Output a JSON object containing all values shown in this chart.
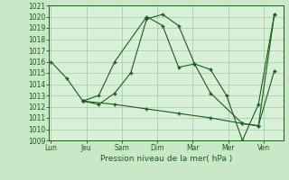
{
  "background_color": "#c8e8c8",
  "plot_bg_color": "#d8f0d8",
  "grid_color": "#a0c8a0",
  "line_color": "#1a5c1a",
  "marker_color": "#1a5c1a",
  "xlabel": "Pression niveau de la mer( hPa )",
  "ylim": [
    1009,
    1021
  ],
  "yticks": [
    1009,
    1010,
    1011,
    1012,
    1013,
    1014,
    1015,
    1016,
    1017,
    1018,
    1019,
    1020,
    1021
  ],
  "xlabels": [
    "Lun",
    "Jeu",
    "Sam",
    "Dim",
    "Mar",
    "Mer",
    "Ven"
  ],
  "xtick_positions": [
    0,
    1,
    2,
    3,
    4,
    5,
    6
  ],
  "xlim": [
    -0.05,
    6.55
  ],
  "series": [
    {
      "x": [
        0,
        0.45,
        0.9,
        1.35,
        1.8,
        2.25,
        2.7,
        3.15,
        3.6,
        4.05,
        4.5,
        5.4,
        5.85,
        6.3
      ],
      "y": [
        1016,
        1014.5,
        1012.5,
        1012.2,
        1013.2,
        1015.0,
        1019.8,
        1020.2,
        1019.2,
        1015.8,
        1013.2,
        1010.5,
        1010.3,
        1020.2
      ]
    },
    {
      "x": [
        0.9,
        1.35,
        1.8,
        2.7,
        3.15,
        3.6,
        4.05,
        4.5,
        4.95,
        5.4,
        5.85,
        6.3
      ],
      "y": [
        1012.5,
        1013.0,
        1016.0,
        1020.0,
        1019.2,
        1015.5,
        1015.8,
        1015.3,
        1013.0,
        1009.0,
        1012.2,
        1020.2
      ]
    },
    {
      "x": [
        0.9,
        1.8,
        2.7,
        3.6,
        4.5,
        5.4,
        5.85,
        6.3
      ],
      "y": [
        1012.5,
        1012.2,
        1011.8,
        1011.4,
        1011.0,
        1010.5,
        1010.3,
        1015.2
      ]
    }
  ]
}
